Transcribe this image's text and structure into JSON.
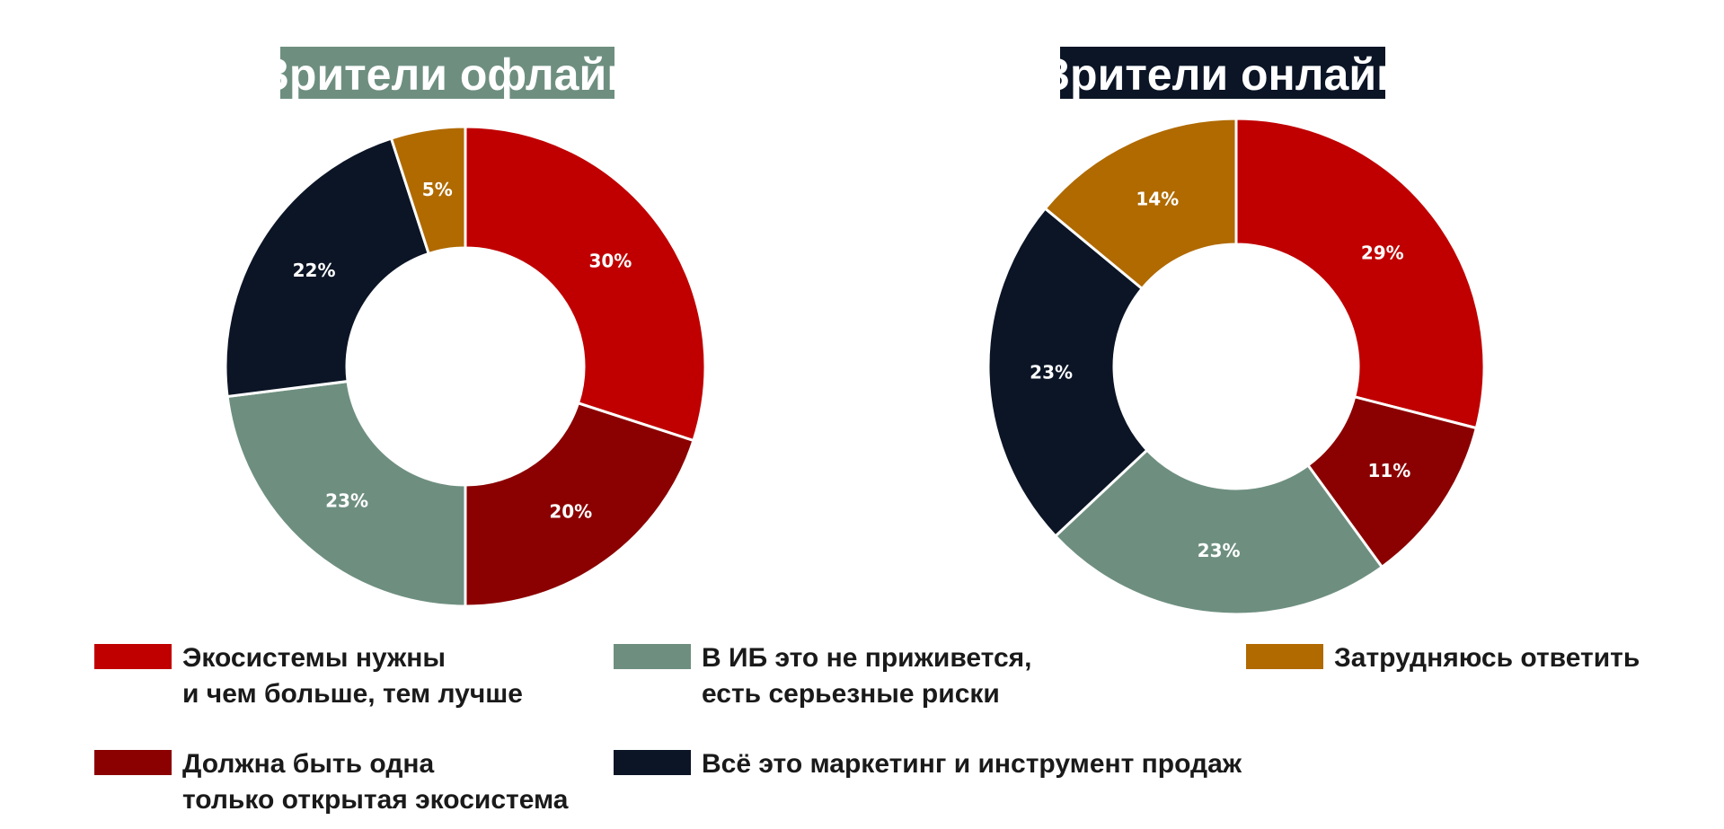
{
  "colors": {
    "eco_needed": "#C00000",
    "one_open": "#8B0000",
    "no_take_root": "#6E8F80",
    "marketing": "#0B1526",
    "hard_to_say": "#B06A00",
    "title_offline_bg": "#6E8F80",
    "title_online_bg": "#0B1526"
  },
  "chart_data": [
    {
      "type": "pie",
      "title": "Зрители офлайн",
      "slices": [
        {
          "key": "eco_needed",
          "value": 30,
          "label": "30%"
        },
        {
          "key": "one_open",
          "value": 20,
          "label": "20%"
        },
        {
          "key": "no_take_root",
          "value": 23,
          "label": "23%"
        },
        {
          "key": "marketing",
          "value": 22,
          "label": "22%"
        },
        {
          "key": "hard_to_say",
          "value": 5,
          "label": "5%"
        }
      ]
    },
    {
      "type": "pie",
      "title": "Зрители онлайн",
      "slices": [
        {
          "key": "eco_needed",
          "value": 29,
          "label": "29%"
        },
        {
          "key": "one_open",
          "value": 11,
          "label": "11%"
        },
        {
          "key": "no_take_root",
          "value": 23,
          "label": "23%"
        },
        {
          "key": "marketing",
          "value": 23,
          "label": "23%"
        },
        {
          "key": "hard_to_say",
          "value": 14,
          "label": "14%"
        }
      ]
    }
  ],
  "legend": [
    {
      "key": "eco_needed",
      "lines": [
        "Экосистемы нужны",
        "и чем больше, тем лучше"
      ]
    },
    {
      "key": "no_take_root",
      "lines": [
        "В ИБ это не приживется,",
        "есть серьезные риски"
      ]
    },
    {
      "key": "hard_to_say",
      "lines": [
        "Затрудняюсь ответить"
      ]
    },
    {
      "key": "one_open",
      "lines": [
        "Должна быть одна",
        "только открытая экосистема"
      ]
    },
    {
      "key": "marketing",
      "lines": [
        "Всё это маркетинг и инструмент продаж"
      ]
    }
  ]
}
